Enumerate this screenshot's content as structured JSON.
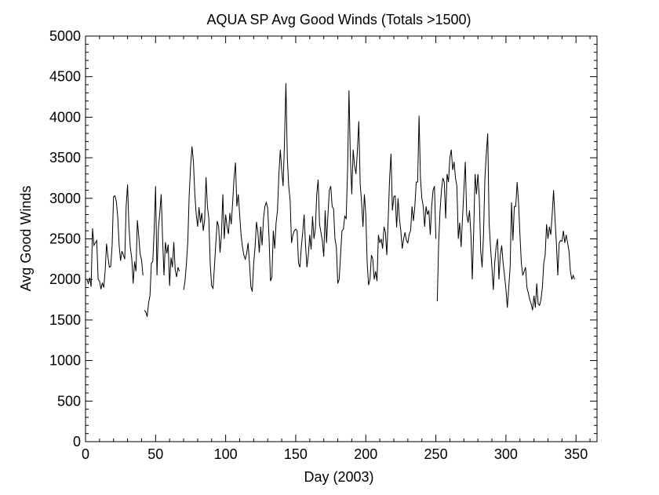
{
  "chart_data": {
    "type": "line",
    "title": "AQUA SP Avg Good Winds (Totals >1500)",
    "xlabel": "Day (2003)",
    "ylabel": "Avg Good Winds",
    "xlim": [
      0,
      365
    ],
    "ylim": [
      0,
      5000
    ],
    "xticks": [
      0,
      50,
      100,
      150,
      200,
      250,
      300,
      350
    ],
    "yticks": [
      0,
      500,
      1000,
      1500,
      2000,
      2500,
      3000,
      3500,
      4000,
      4500,
      5000
    ],
    "grid": false,
    "line_color": "#000000",
    "segments": [
      [
        [
          1,
          2000
        ],
        [
          2,
          1950
        ],
        [
          3,
          2020
        ],
        [
          4,
          1910
        ],
        [
          5,
          2630
        ],
        [
          6,
          2420
        ],
        [
          7,
          2450
        ],
        [
          8,
          2480
        ],
        [
          9,
          2000
        ],
        [
          10,
          1980
        ],
        [
          11,
          1880
        ],
        [
          12,
          1960
        ],
        [
          13,
          1900
        ],
        [
          14,
          2100
        ],
        [
          15,
          2440
        ],
        [
          16,
          2280
        ],
        [
          17,
          2150
        ],
        [
          18,
          2160
        ],
        [
          19,
          2420
        ],
        [
          20,
          3020
        ],
        [
          21,
          3030
        ],
        [
          22,
          2960
        ],
        [
          23,
          2770
        ],
        [
          24,
          2420
        ],
        [
          25,
          2230
        ],
        [
          26,
          2350
        ],
        [
          27,
          2300
        ],
        [
          28,
          2250
        ],
        [
          29,
          2900
        ],
        [
          30,
          3170
        ],
        [
          31,
          2650
        ],
        [
          32,
          2390
        ],
        [
          33,
          2260
        ],
        [
          34,
          1950
        ],
        [
          35,
          2220
        ],
        [
          36,
          2100
        ],
        [
          37,
          2730
        ],
        [
          38,
          2530
        ],
        [
          39,
          2310
        ],
        [
          40,
          2240
        ],
        [
          41,
          2050
        ]
      ],
      [
        [
          42,
          1620
        ],
        [
          43,
          1600
        ],
        [
          44,
          1540
        ],
        [
          45,
          1710
        ],
        [
          46,
          1800
        ],
        [
          47,
          2200
        ],
        [
          48,
          2220
        ],
        [
          49,
          2600
        ],
        [
          50,
          3150
        ],
        [
          51,
          2050
        ],
        [
          52,
          2620
        ],
        [
          53,
          2820
        ],
        [
          54,
          3050
        ],
        [
          55,
          2500
        ],
        [
          56,
          2050
        ],
        [
          57,
          2460
        ],
        [
          58,
          2320
        ],
        [
          59,
          2430
        ],
        [
          60,
          1920
        ],
        [
          61,
          2270
        ],
        [
          62,
          2150
        ],
        [
          63,
          2460
        ],
        [
          64,
          2120
        ],
        [
          65,
          2030
        ],
        [
          66,
          2150
        ],
        [
          67,
          2100
        ]
      ],
      [
        [
          70,
          1870
        ],
        [
          71,
          1980
        ],
        [
          72,
          2190
        ],
        [
          73,
          2470
        ],
        [
          74,
          3050
        ],
        [
          75,
          3400
        ],
        [
          76,
          3640
        ],
        [
          77,
          3450
        ],
        [
          78,
          3050
        ],
        [
          79,
          2800
        ],
        [
          80,
          2650
        ],
        [
          81,
          2890
        ],
        [
          82,
          2700
        ],
        [
          83,
          2820
        ],
        [
          84,
          2600
        ],
        [
          85,
          2730
        ],
        [
          86,
          3260
        ],
        [
          87,
          2900
        ],
        [
          88,
          2750
        ],
        [
          89,
          2190
        ],
        [
          90,
          1920
        ],
        [
          91,
          1890
        ],
        [
          92,
          2160
        ],
        [
          93,
          2450
        ],
        [
          94,
          2720
        ],
        [
          95,
          2650
        ],
        [
          96,
          2330
        ],
        [
          97,
          2550
        ],
        [
          98,
          3050
        ],
        [
          99,
          2500
        ],
        [
          100,
          2800
        ],
        [
          101,
          2650
        ],
        [
          102,
          2560
        ],
        [
          103,
          2820
        ],
        [
          104,
          2680
        ],
        [
          105,
          2950
        ],
        [
          106,
          3250
        ],
        [
          107,
          3440
        ],
        [
          108,
          2900
        ],
        [
          109,
          3050
        ],
        [
          110,
          2800
        ],
        [
          111,
          2550
        ],
        [
          112,
          2400
        ],
        [
          113,
          2300
        ],
        [
          114,
          2250
        ],
        [
          115,
          2320
        ],
        [
          116,
          2450
        ],
        [
          117,
          2200
        ],
        [
          118,
          1910
        ],
        [
          119,
          1850
        ],
        [
          120,
          2200
        ],
        [
          121,
          2400
        ],
        [
          122,
          2710
        ],
        [
          123,
          2580
        ],
        [
          124,
          2330
        ],
        [
          125,
          2650
        ],
        [
          126,
          2420
        ],
        [
          127,
          2750
        ],
        [
          128,
          2900
        ],
        [
          129,
          2950
        ],
        [
          130,
          2880
        ],
        [
          131,
          2500
        ],
        [
          132,
          1980
        ],
        [
          133,
          2030
        ],
        [
          134,
          2600
        ],
        [
          135,
          2380
        ],
        [
          136,
          2700
        ],
        [
          137,
          2850
        ],
        [
          138,
          3300
        ],
        [
          139,
          3600
        ],
        [
          140,
          3350
        ],
        [
          141,
          3150
        ],
        [
          142,
          3700
        ],
        [
          143,
          4420
        ],
        [
          144,
          3500
        ],
        [
          145,
          3150
        ],
        [
          146,
          2980
        ],
        [
          147,
          2450
        ],
        [
          148,
          2550
        ],
        [
          149,
          2600
        ],
        [
          150,
          2620
        ],
        [
          151,
          2600
        ],
        [
          152,
          2200
        ],
        [
          153,
          2150
        ],
        [
          154,
          2400
        ],
        [
          155,
          2580
        ],
        [
          156,
          2800
        ],
        [
          157,
          2420
        ],
        [
          158,
          2150
        ],
        [
          159,
          2300
        ],
        [
          160,
          2550
        ],
        [
          161,
          2370
        ],
        [
          162,
          2780
        ],
        [
          163,
          2500
        ],
        [
          164,
          2620
        ],
        [
          165,
          3050
        ],
        [
          166,
          3230
        ],
        [
          167,
          2680
        ],
        [
          168,
          2580
        ],
        [
          169,
          2480
        ],
        [
          170,
          2280
        ],
        [
          171,
          2850
        ],
        [
          172,
          2450
        ],
        [
          173,
          2800
        ],
        [
          174,
          3100
        ],
        [
          175,
          3150
        ],
        [
          176,
          2900
        ],
        [
          177,
          2870
        ],
        [
          178,
          2500
        ],
        [
          179,
          2400
        ],
        [
          180,
          1950
        ],
        [
          181,
          2000
        ],
        [
          182,
          2300
        ],
        [
          183,
          2600
        ],
        [
          184,
          2620
        ],
        [
          185,
          2780
        ],
        [
          186,
          2750
        ],
        [
          187,
          3350
        ],
        [
          188,
          4330
        ],
        [
          189,
          3500
        ],
        [
          190,
          3050
        ],
        [
          191,
          3600
        ],
        [
          192,
          3400
        ],
        [
          193,
          3300
        ],
        [
          194,
          3580
        ],
        [
          195,
          3950
        ],
        [
          196,
          3180
        ],
        [
          197,
          2950
        ],
        [
          198,
          2650
        ],
        [
          199,
          3050
        ],
        [
          200,
          2800
        ],
        [
          201,
          2200
        ],
        [
          202,
          1930
        ],
        [
          203,
          2000
        ],
        [
          204,
          2300
        ],
        [
          205,
          2250
        ],
        [
          206,
          2000
        ],
        [
          207,
          2100
        ],
        [
          208,
          1980
        ],
        [
          209,
          2550
        ],
        [
          210,
          2450
        ],
        [
          211,
          2500
        ],
        [
          212,
          2380
        ],
        [
          213,
          2650
        ],
        [
          214,
          2580
        ],
        [
          215,
          2300
        ],
        [
          216,
          2750
        ],
        [
          217,
          3250
        ],
        [
          218,
          3550
        ],
        [
          219,
          2850
        ],
        [
          220,
          3020
        ],
        [
          221,
          3030
        ],
        [
          222,
          2640
        ],
        [
          223,
          3000
        ],
        [
          224,
          2750
        ],
        [
          225,
          2600
        ],
        [
          226,
          2380
        ],
        [
          227,
          2500
        ],
        [
          228,
          2580
        ],
        [
          229,
          2480
        ],
        [
          230,
          2450
        ],
        [
          231,
          2560
        ],
        [
          232,
          2600
        ],
        [
          233,
          2900
        ],
        [
          234,
          2720
        ],
        [
          235,
          2900
        ],
        [
          236,
          3200
        ],
        [
          237,
          3200
        ],
        [
          238,
          4020
        ],
        [
          239,
          3250
        ],
        [
          240,
          3000
        ],
        [
          241,
          2900
        ],
        [
          242,
          2650
        ],
        [
          243,
          2900
        ],
        [
          244,
          2800
        ],
        [
          245,
          2850
        ],
        [
          246,
          2550
        ],
        [
          247,
          2900
        ],
        [
          248,
          3100
        ],
        [
          249,
          3150
        ],
        [
          250,
          2500
        ]
      ],
      [
        [
          251,
          1730
        ],
        [
          252,
          2450
        ],
        [
          253,
          2850
        ],
        [
          254,
          3100
        ],
        [
          255,
          3250
        ],
        [
          256,
          3200
        ],
        [
          257,
          2750
        ],
        [
          258,
          3300
        ],
        [
          259,
          3200
        ],
        [
          260,
          3500
        ],
        [
          261,
          3600
        ],
        [
          262,
          3350
        ],
        [
          263,
          3450
        ],
        [
          264,
          3250
        ],
        [
          265,
          3150
        ],
        [
          266,
          2500
        ],
        [
          267,
          2700
        ],
        [
          268,
          2400
        ],
        [
          269,
          2750
        ],
        [
          270,
          3100
        ],
        [
          271,
          3450
        ],
        [
          272,
          2800
        ],
        [
          273,
          2700
        ],
        [
          274,
          2850
        ],
        [
          275,
          2560
        ],
        [
          276,
          2000
        ],
        [
          277,
          2600
        ],
        [
          278,
          3300
        ],
        [
          279,
          3050
        ],
        [
          280,
          3300
        ],
        [
          281,
          3000
        ],
        [
          282,
          2350
        ],
        [
          283,
          2150
        ],
        [
          284,
          2550
        ],
        [
          285,
          3250
        ],
        [
          286,
          3550
        ],
        [
          287,
          3800
        ],
        [
          288,
          2700
        ],
        [
          289,
          2400
        ],
        [
          290,
          2150
        ],
        [
          291,
          1870
        ],
        [
          292,
          2200
        ],
        [
          293,
          2400
        ],
        [
          294,
          2500
        ],
        [
          295,
          2000
        ],
        [
          296,
          2300
        ],
        [
          297,
          2420
        ],
        [
          298,
          2200
        ],
        [
          299,
          2050
        ],
        [
          300,
          1880
        ],
        [
          301,
          1650
        ],
        [
          302,
          1900
        ],
        [
          303,
          2150
        ],
        [
          304,
          2950
        ],
        [
          305,
          2480
        ],
        [
          306,
          2900
        ],
        [
          307,
          2900
        ],
        [
          308,
          3200
        ],
        [
          309,
          2950
        ],
        [
          310,
          2550
        ],
        [
          311,
          2200
        ],
        [
          312,
          2050
        ],
        [
          313,
          2100
        ],
        [
          314,
          2150
        ],
        [
          315,
          1900
        ],
        [
          316,
          1830
        ],
        [
          317,
          1750
        ],
        [
          318,
          1700
        ],
        [
          319,
          1620
        ],
        [
          320,
          1800
        ],
        [
          321,
          1650
        ],
        [
          322,
          1950
        ],
        [
          323,
          1700
        ],
        [
          324,
          1680
        ],
        [
          325,
          1750
        ],
        [
          326,
          1900
        ],
        [
          327,
          2200
        ],
        [
          328,
          2300
        ],
        [
          329,
          2680
        ],
        [
          330,
          2500
        ],
        [
          331,
          2650
        ],
        [
          332,
          2550
        ],
        [
          333,
          2800
        ],
        [
          334,
          3100
        ],
        [
          335,
          2750
        ],
        [
          336,
          2450
        ],
        [
          337,
          2050
        ],
        [
          338,
          2450
        ],
        [
          339,
          2480
        ],
        [
          340,
          2470
        ],
        [
          341,
          2600
        ],
        [
          342,
          2450
        ],
        [
          343,
          2550
        ],
        [
          344,
          2450
        ],
        [
          345,
          2350
        ],
        [
          346,
          2100
        ],
        [
          347,
          2000
        ],
        [
          348,
          2050
        ],
        [
          349,
          2000
        ]
      ]
    ]
  }
}
